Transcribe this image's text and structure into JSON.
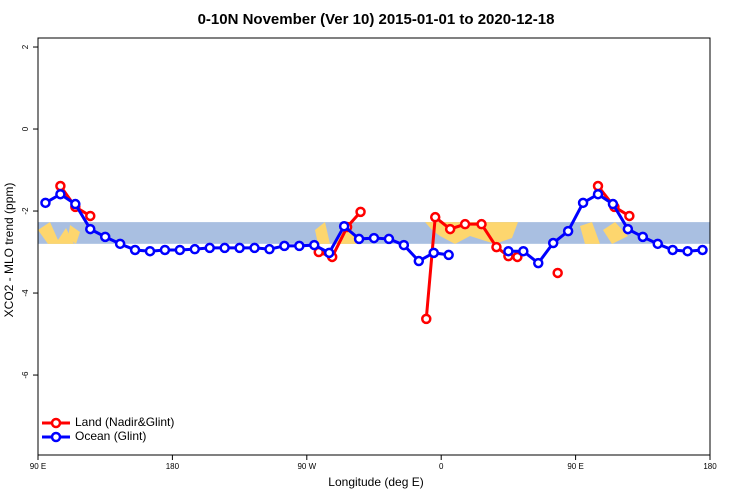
{
  "chart_data": {
    "type": "line",
    "title": "0-10N November (Ver 10)   2015-01-01 to 2020-12-18",
    "x_label": "Longitude (deg E)",
    "y_label": "XCO2 - MLO trend (ppm)",
    "xlim": [
      90,
      540
    ],
    "ylim": [
      -7.95,
      2.22
    ],
    "xticks": [
      {
        "value": 90,
        "label": "90 E"
      },
      180,
      {
        "value": 270,
        "label": "90 W"
      },
      {
        "value": 360,
        "label": "0"
      },
      {
        "value": 450,
        "label": "90 E"
      },
      {
        "value": 540,
        "label": "180"
      }
    ],
    "yticks": [
      2,
      0,
      -2,
      -4,
      -6
    ],
    "band": [
      -2.8,
      -2.27
    ],
    "band_color": "#a9bfe1",
    "legend": "bottom-left",
    "series": [
      {
        "name": "Land (Nadir&Glint)",
        "color": "#ff0000",
        "x": [
          105,
          115,
          125,
          null,
          278,
          287,
          297,
          306,
          null,
          350,
          356,
          366,
          376,
          387,
          397,
          405,
          411,
          null,
          438,
          null,
          465,
          476,
          486
        ],
        "values": [
          -1.39,
          -1.9,
          -2.12,
          null,
          -3.0,
          -3.12,
          -2.39,
          -2.02,
          null,
          -4.63,
          -2.15,
          -2.44,
          -2.32,
          -2.32,
          -2.88,
          -3.1,
          -3.12,
          null,
          -3.51,
          null,
          -1.39,
          -1.9,
          -2.12
        ]
      },
      {
        "name": "Ocean (Glint)",
        "color": "#0000ff",
        "x": [
          95,
          105,
          115,
          125,
          135,
          145,
          155,
          165,
          175,
          185,
          195,
          205,
          215,
          225,
          235,
          245,
          255,
          265,
          275,
          285,
          295,
          305,
          315,
          325,
          335,
          345,
          355,
          365,
          null,
          405,
          415,
          425,
          435,
          445,
          455,
          465,
          475,
          485,
          495,
          505,
          515,
          525,
          535
        ],
        "values": [
          -1.8,
          -1.59,
          -1.83,
          -2.44,
          -2.63,
          -2.8,
          -2.95,
          -2.98,
          -2.95,
          -2.95,
          -2.93,
          -2.9,
          -2.9,
          -2.9,
          -2.9,
          -2.93,
          -2.85,
          -2.85,
          -2.83,
          -3.02,
          -2.37,
          -2.68,
          -2.66,
          -2.68,
          -2.83,
          -3.22,
          -3.02,
          -3.07,
          null,
          -2.98,
          -2.98,
          -3.27,
          -2.78,
          -2.49,
          -1.8,
          -1.59,
          -1.83,
          -2.44,
          -2.63,
          -2.8,
          -2.95,
          -2.98,
          -2.95
        ]
      }
    ]
  }
}
